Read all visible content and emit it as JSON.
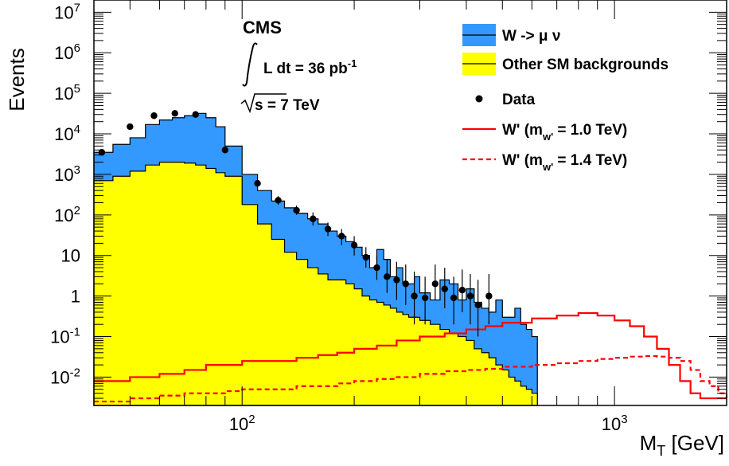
{
  "chart_data": {
    "type": "histogram",
    "experiment": "CMS",
    "lumi_label": "L dt = 36 pb",
    "lumi_exp": "-1",
    "energy_label": "s = 7 TeV",
    "ylabel": "Events",
    "xlabel_main": "M",
    "xlabel_sub": "T",
    "xlabel_unit": " [GeV]",
    "xscale": "log",
    "yscale": "log",
    "xlim": [
      40,
      2000
    ],
    "ylim": [
      0.002,
      20000000
    ],
    "x_ticks": [
      {
        "value": 100,
        "base": "10",
        "exp": "2"
      },
      {
        "value": 1000,
        "base": "10",
        "exp": "3"
      }
    ],
    "y_ticks": [
      {
        "value": 0.01,
        "base": "10",
        "exp": "-2"
      },
      {
        "value": 0.1,
        "base": "10",
        "exp": "-1"
      },
      {
        "value": 1,
        "base": "1",
        "exp": ""
      },
      {
        "value": 10,
        "base": "10",
        "exp": ""
      },
      {
        "value": 100,
        "base": "10",
        "exp": "2"
      },
      {
        "value": 1000,
        "base": "10",
        "exp": "3"
      },
      {
        "value": 10000,
        "base": "10",
        "exp": "4"
      },
      {
        "value": 100000,
        "base": "10",
        "exp": "5"
      },
      {
        "value": 1000000,
        "base": "10",
        "exp": "6"
      },
      {
        "value": 10000000,
        "base": "10",
        "exp": "7"
      }
    ],
    "legend_position": "top-right",
    "legend": [
      {
        "key": "wmunu",
        "text": "W -> μ ν",
        "style": "fill",
        "color": "#3399ff"
      },
      {
        "key": "other",
        "text": "Other SM backgrounds",
        "style": "fill",
        "color": "#ffff00"
      },
      {
        "key": "data",
        "text": "Data",
        "style": "marker",
        "color": "#000000"
      },
      {
        "key": "wp10",
        "text": "W' (m",
        "sub": "w'",
        "tail": " = 1.0 TeV)",
        "style": "line",
        "color": "#ff0000"
      },
      {
        "key": "wp14",
        "text": "W' (m",
        "sub": "w'",
        "tail": " = 1.4 TeV)",
        "style": "dashed",
        "color": "#ff0000"
      }
    ],
    "series": [
      {
        "name": "W -> μ ν",
        "type": "stack_total",
        "color": "#3399ff",
        "x": [
          40,
          45,
          50,
          55,
          60,
          65,
          70,
          75,
          80,
          85,
          90,
          100,
          110,
          120,
          130,
          140,
          150,
          160,
          170,
          180,
          190,
          200,
          210,
          220,
          230,
          240,
          250,
          260,
          270,
          280,
          290,
          300,
          320,
          340,
          360,
          380,
          400,
          420,
          440,
          460,
          480,
          500,
          520,
          540,
          560,
          580,
          600
        ],
        "values": [
          3500,
          5500,
          8000,
          17000,
          22000,
          25000,
          28000,
          32000,
          25000,
          15000,
          5000,
          1000,
          400,
          220,
          150,
          110,
          80,
          60,
          40,
          30,
          22,
          16,
          10,
          5,
          14,
          8,
          3,
          5,
          2,
          2,
          3,
          1.2,
          0.8,
          2.5,
          2,
          0.8,
          1.5,
          0.7,
          0.5,
          0.4,
          0.8,
          0.3,
          0.3,
          0.5,
          0.2,
          0.15,
          0.1
        ]
      },
      {
        "name": "Other SM backgrounds",
        "type": "fill",
        "color": "#ffff00",
        "x": [
          40,
          45,
          50,
          55,
          60,
          65,
          70,
          75,
          80,
          85,
          90,
          100,
          110,
          120,
          130,
          140,
          150,
          160,
          170,
          180,
          190,
          200,
          210,
          220,
          230,
          240,
          250,
          260,
          270,
          280,
          290,
          300,
          320,
          340,
          360,
          380,
          400,
          420,
          440,
          460,
          480,
          500,
          520,
          540,
          560,
          580,
          600
        ],
        "values": [
          700,
          900,
          1200,
          1700,
          2000,
          2000,
          1900,
          1700,
          1400,
          1100,
          900,
          180,
          60,
          25,
          12,
          8,
          5,
          3.5,
          2.5,
          2.5,
          2,
          1.5,
          1,
          0.8,
          0.7,
          0.6,
          0.5,
          0.4,
          0.35,
          0.3,
          0.3,
          0.25,
          0.2,
          0.15,
          0.12,
          0.1,
          0.08,
          0.05,
          0.04,
          0.03,
          0.02,
          0.015,
          0.01,
          0.008,
          0.006,
          0.005,
          0.004
        ]
      },
      {
        "name": "W' (m_w' = 1.0 TeV)",
        "type": "line",
        "color": "#ff0000",
        "x": [
          40,
          50,
          60,
          70,
          80,
          90,
          100,
          120,
          140,
          160,
          180,
          200,
          230,
          260,
          300,
          350,
          400,
          450,
          500,
          600,
          700,
          800,
          900,
          1000,
          1100,
          1200,
          1300,
          1400,
          1500,
          1600,
          1700,
          1800,
          1900,
          2000
        ],
        "values": [
          0.008,
          0.01,
          0.012,
          0.015,
          0.02,
          0.02,
          0.025,
          0.025,
          0.03,
          0.035,
          0.04,
          0.05,
          0.06,
          0.08,
          0.1,
          0.12,
          0.15,
          0.18,
          0.22,
          0.28,
          0.33,
          0.38,
          0.33,
          0.25,
          0.18,
          0.1,
          0.05,
          0.02,
          0.008,
          0.004,
          0.003,
          0.003,
          0.003,
          0.003
        ]
      },
      {
        "name": "W' (m_w' = 1.4 TeV)",
        "type": "dashed",
        "color": "#ff0000",
        "x": [
          40,
          50,
          60,
          70,
          80,
          90,
          100,
          120,
          140,
          160,
          180,
          200,
          230,
          260,
          300,
          350,
          400,
          450,
          500,
          600,
          700,
          800,
          900,
          1000,
          1100,
          1200,
          1300,
          1400,
          1500,
          1600,
          1700,
          1800,
          1900,
          2000
        ],
        "values": [
          0.0025,
          0.003,
          0.0035,
          0.004,
          0.004,
          0.0045,
          0.005,
          0.005,
          0.006,
          0.006,
          0.007,
          0.008,
          0.009,
          0.01,
          0.012,
          0.014,
          0.015,
          0.016,
          0.018,
          0.02,
          0.022,
          0.025,
          0.028,
          0.03,
          0.032,
          0.033,
          0.032,
          0.03,
          0.025,
          0.015,
          0.008,
          0.006,
          0.004,
          0.003
        ]
      },
      {
        "name": "Data",
        "type": "points",
        "color": "#000000",
        "x": [
          42,
          50,
          58,
          66,
          75,
          90,
          110,
          125,
          140,
          155,
          170,
          185,
          200,
          215,
          230,
          245,
          260,
          275,
          290,
          310,
          330,
          350,
          370,
          390,
          410,
          430,
          460
        ],
        "values": [
          3500,
          15000,
          28000,
          32000,
          30000,
          4000,
          600,
          230,
          130,
          80,
          45,
          30,
          18,
          9,
          5,
          3,
          2.5,
          2,
          1,
          0.9,
          2,
          1.5,
          0.9,
          1.4,
          1,
          0.6,
          1
        ],
        "err_lo": [
          3000,
          14000,
          26000,
          30000,
          28000,
          3500,
          500,
          180,
          100,
          55,
          30,
          18,
          10,
          5,
          2.5,
          1.2,
          0.8,
          0.6,
          0.2,
          0.2,
          0.8,
          0.5,
          0.2,
          0.4,
          0.2,
          0.1,
          0.2
        ],
        "err_hi": [
          4000,
          16000,
          30000,
          34000,
          32000,
          4500,
          700,
          290,
          170,
          115,
          65,
          45,
          30,
          16,
          10,
          8,
          7,
          6,
          4,
          3,
          6,
          5,
          3,
          4.5,
          3.5,
          2.5,
          3.5
        ]
      }
    ]
  }
}
